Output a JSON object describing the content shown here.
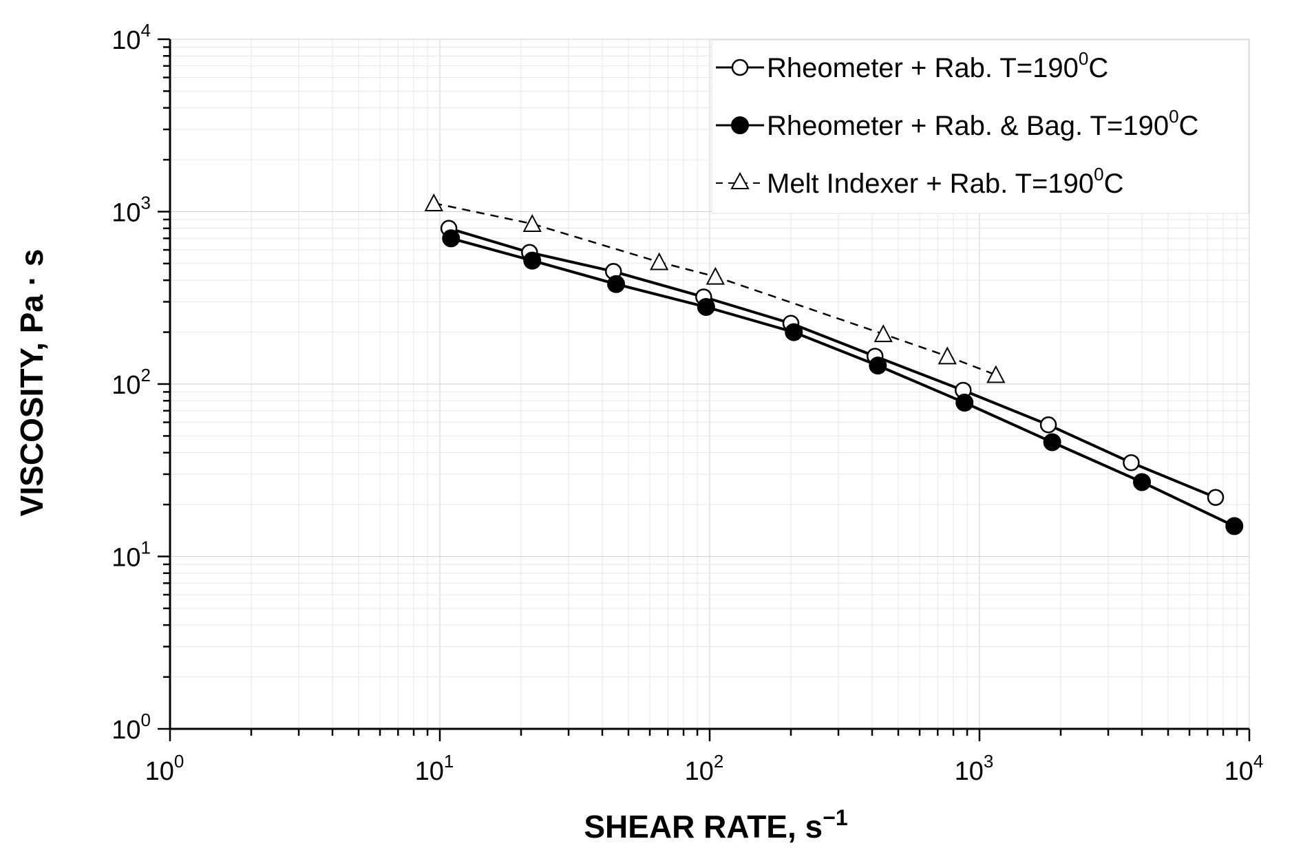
{
  "chart_data": {
    "type": "line",
    "title": "",
    "xlabel": "SHEAR RATE, s",
    "xlabel_sup": "−1",
    "ylabel": "VISCOSITY, Pa · s",
    "x_scale": "log",
    "y_scale": "log",
    "xlim": [
      1,
      10000
    ],
    "ylim": [
      1,
      10000
    ],
    "grid": true,
    "x_ticks": [
      {
        "base": "10",
        "exp": "0"
      },
      {
        "base": "10",
        "exp": "1"
      },
      {
        "base": "10",
        "exp": "2"
      },
      {
        "base": "10",
        "exp": "3"
      },
      {
        "base": "10",
        "exp": "4"
      }
    ],
    "y_ticks": [
      {
        "base": "10",
        "exp": "0"
      },
      {
        "base": "10",
        "exp": "1"
      },
      {
        "base": "10",
        "exp": "2"
      },
      {
        "base": "10",
        "exp": "3"
      },
      {
        "base": "10",
        "exp": "4"
      }
    ],
    "legend": {
      "position": "top-right",
      "entries": [
        {
          "text": "Rheometer + Rab. T=190",
          "sup": "0",
          "suffix": "C"
        },
        {
          "text": "Rheometer + Rab. & Bag. T=190",
          "sup": "0",
          "suffix": "C"
        },
        {
          "text": "Melt Indexer + Rab. T=190",
          "sup": "0",
          "suffix": "C"
        }
      ]
    },
    "series": [
      {
        "name": "Rheometer + Rab. T=190⁰C",
        "marker": "open-circle",
        "line": "solid",
        "x": [
          10.8,
          21.5,
          44,
          95,
          200,
          410,
          870,
          1800,
          3650,
          7500
        ],
        "y": [
          800,
          580,
          450,
          320,
          225,
          145,
          92,
          58,
          35,
          22
        ]
      },
      {
        "name": "Rheometer + Rab. & Bag. T=190⁰C",
        "marker": "filled-circle",
        "line": "solid",
        "x": [
          11,
          22,
          45,
          97,
          205,
          420,
          880,
          1860,
          4000,
          8800
        ],
        "y": [
          700,
          520,
          380,
          280,
          200,
          128,
          78,
          46,
          27,
          15
        ]
      },
      {
        "name": "Melt Indexer + Rab. T=190⁰C",
        "marker": "open-triangle",
        "line": "dashed",
        "x": [
          9.5,
          22,
          65,
          105,
          440,
          760,
          1150
        ],
        "y": [
          1120,
          850,
          510,
          420,
          195,
          145,
          113
        ]
      }
    ]
  }
}
